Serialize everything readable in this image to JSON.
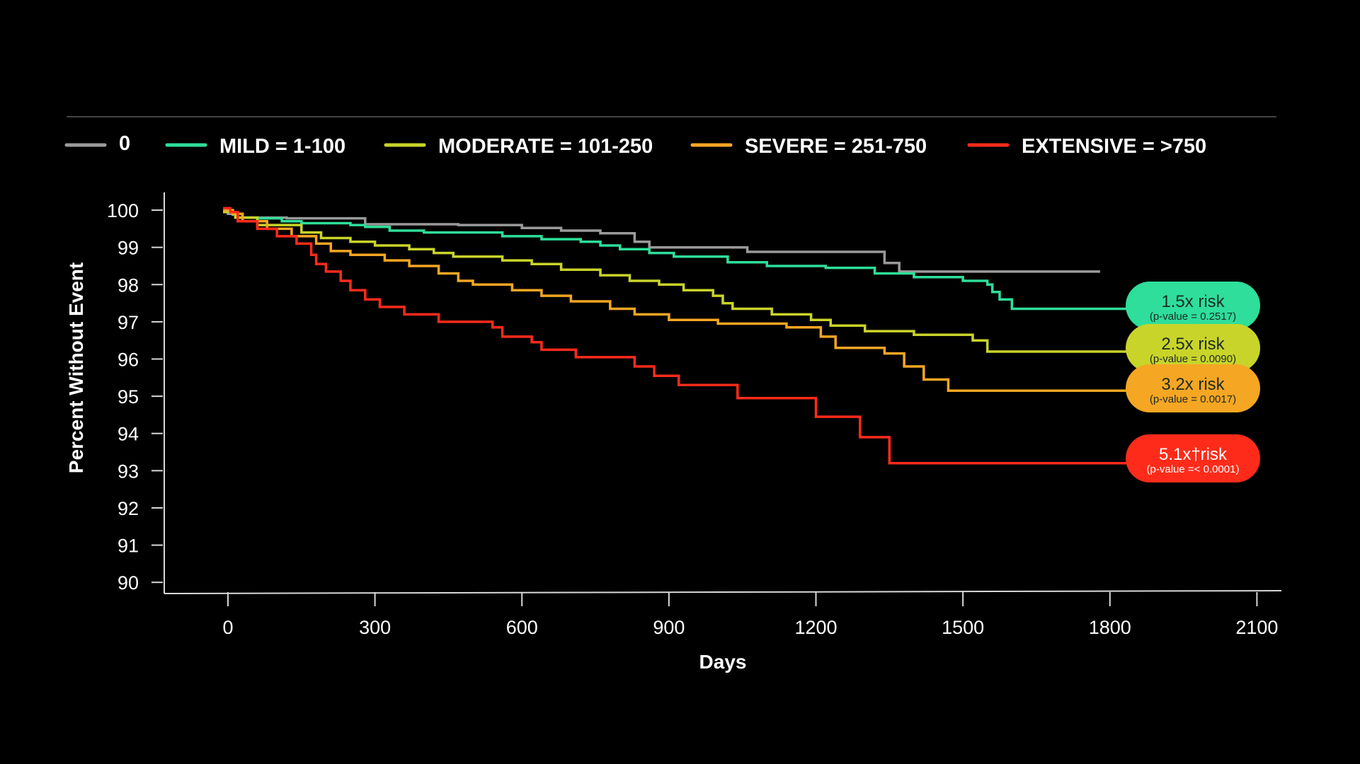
{
  "chart_data": {
    "type": "line",
    "step": true,
    "xlabel": "Days",
    "ylabel": "Percent Without Event",
    "xlim": [
      -130,
      2150
    ],
    "ylim": [
      89.7,
      100.4
    ],
    "xticks": [
      0,
      300,
      600,
      900,
      1200,
      1500,
      1800,
      2100
    ],
    "xtick_labels": [
      "0",
      "300",
      "600",
      "900",
      "1200",
      "1500",
      "1800",
      "2100"
    ],
    "yticks": [
      90,
      91,
      92,
      93,
      94,
      95,
      96,
      97,
      98,
      99,
      100
    ],
    "ytick_labels": [
      "90",
      "91",
      "92",
      "93",
      "94",
      "95",
      "96",
      "97",
      "98",
      "99",
      "100"
    ],
    "legend_position": "top",
    "series": [
      {
        "name": "0",
        "color": "#9a9a9a",
        "points": [
          [
            -10,
            99.95
          ],
          [
            0,
            99.9
          ],
          [
            20,
            99.8
          ],
          [
            120,
            99.78
          ],
          [
            280,
            99.7
          ],
          [
            280,
            99.62
          ],
          [
            470,
            99.6
          ],
          [
            600,
            99.52
          ],
          [
            680,
            99.45
          ],
          [
            760,
            99.38
          ],
          [
            830,
            99.25
          ],
          [
            830,
            99.15
          ],
          [
            860,
            99.0
          ],
          [
            1060,
            98.88
          ],
          [
            1340,
            98.78
          ],
          [
            1340,
            98.58
          ],
          [
            1370,
            98.48
          ],
          [
            1370,
            98.35
          ],
          [
            1780,
            98.35
          ]
        ]
      },
      {
        "name": "MILD = 1-100",
        "color": "#2ede9a",
        "points": [
          [
            -10,
            99.95
          ],
          [
            10,
            99.88
          ],
          [
            20,
            99.8
          ],
          [
            60,
            99.78
          ],
          [
            110,
            99.7
          ],
          [
            150,
            99.65
          ],
          [
            250,
            99.6
          ],
          [
            280,
            99.55
          ],
          [
            330,
            99.45
          ],
          [
            400,
            99.4
          ],
          [
            560,
            99.3
          ],
          [
            640,
            99.22
          ],
          [
            720,
            99.15
          ],
          [
            760,
            99.05
          ],
          [
            800,
            98.95
          ],
          [
            860,
            98.85
          ],
          [
            910,
            98.75
          ],
          [
            1020,
            98.6
          ],
          [
            1100,
            98.5
          ],
          [
            1220,
            98.45
          ],
          [
            1320,
            98.3
          ],
          [
            1400,
            98.2
          ],
          [
            1500,
            98.1
          ],
          [
            1550,
            98.0
          ],
          [
            1560,
            97.8
          ],
          [
            1575,
            97.6
          ],
          [
            1600,
            97.35
          ],
          [
            1890,
            97.35
          ]
        ]
      },
      {
        "name": "MODERATE = 101-250",
        "color": "#c9d42a",
        "points": [
          [
            -10,
            99.95
          ],
          [
            15,
            99.8
          ],
          [
            60,
            99.6
          ],
          [
            150,
            99.4
          ],
          [
            190,
            99.25
          ],
          [
            250,
            99.15
          ],
          [
            300,
            99.05
          ],
          [
            370,
            98.95
          ],
          [
            420,
            98.85
          ],
          [
            460,
            98.75
          ],
          [
            560,
            98.65
          ],
          [
            620,
            98.55
          ],
          [
            680,
            98.4
          ],
          [
            760,
            98.25
          ],
          [
            820,
            98.1
          ],
          [
            880,
            98.0
          ],
          [
            930,
            97.85
          ],
          [
            990,
            97.7
          ],
          [
            1010,
            97.5
          ],
          [
            1030,
            97.35
          ],
          [
            1110,
            97.2
          ],
          [
            1190,
            97.05
          ],
          [
            1230,
            96.9
          ],
          [
            1300,
            96.75
          ],
          [
            1400,
            96.65
          ],
          [
            1520,
            96.5
          ],
          [
            1550,
            96.2
          ],
          [
            1890,
            96.2
          ]
        ]
      },
      {
        "name": "SEVERE = 251-750",
        "color": "#f5a623",
        "points": [
          [
            -10,
            100.0
          ],
          [
            10,
            99.9
          ],
          [
            30,
            99.7
          ],
          [
            80,
            99.5
          ],
          [
            130,
            99.3
          ],
          [
            180,
            99.1
          ],
          [
            210,
            98.9
          ],
          [
            250,
            98.8
          ],
          [
            320,
            98.65
          ],
          [
            370,
            98.5
          ],
          [
            430,
            98.3
          ],
          [
            470,
            98.1
          ],
          [
            500,
            98.0
          ],
          [
            580,
            97.85
          ],
          [
            640,
            97.7
          ],
          [
            700,
            97.55
          ],
          [
            780,
            97.35
          ],
          [
            830,
            97.2
          ],
          [
            900,
            97.05
          ],
          [
            1000,
            96.95
          ],
          [
            1140,
            96.85
          ],
          [
            1210,
            96.6
          ],
          [
            1240,
            96.3
          ],
          [
            1340,
            96.15
          ],
          [
            1380,
            95.8
          ],
          [
            1420,
            95.45
          ],
          [
            1470,
            95.15
          ],
          [
            1890,
            95.15
          ]
        ]
      },
      {
        "name": "EXTENSIVE = >750",
        "color": "#ff2b1a",
        "points": [
          [
            -10,
            100.05
          ],
          [
            5,
            99.95
          ],
          [
            20,
            99.7
          ],
          [
            60,
            99.5
          ],
          [
            100,
            99.3
          ],
          [
            140,
            99.1
          ],
          [
            170,
            98.8
          ],
          [
            180,
            98.55
          ],
          [
            200,
            98.35
          ],
          [
            230,
            98.1
          ],
          [
            250,
            97.85
          ],
          [
            280,
            97.6
          ],
          [
            310,
            97.4
          ],
          [
            360,
            97.2
          ],
          [
            430,
            97.0
          ],
          [
            540,
            96.85
          ],
          [
            560,
            96.6
          ],
          [
            620,
            96.45
          ],
          [
            640,
            96.25
          ],
          [
            710,
            96.05
          ],
          [
            830,
            95.8
          ],
          [
            870,
            95.55
          ],
          [
            920,
            95.3
          ],
          [
            1040,
            94.95
          ],
          [
            1200,
            94.45
          ],
          [
            1290,
            93.9
          ],
          [
            1350,
            93.2
          ],
          [
            1860,
            93.2
          ]
        ]
      }
    ],
    "annotations": [
      {
        "series": "MILD = 1-100",
        "title": "1.5x risk",
        "subtitle": "(p-value = 0.2517)",
        "fill": "#2ede9a",
        "text_color": "#1c2a24"
      },
      {
        "series": "MODERATE = 101-250",
        "title": "2.5x risk",
        "subtitle": "(p-value = 0.0090)",
        "fill": "#c9d42a",
        "text_color": "#1c2a24"
      },
      {
        "series": "SEVERE = 251-750",
        "title": "3.2x risk",
        "subtitle": "(p-value = 0.0017)",
        "fill": "#f5a623",
        "text_color": "#1c2a24"
      },
      {
        "series": "EXTENSIVE = >750",
        "title": "5.1x†risk",
        "subtitle": "(p-value =< 0.0001)",
        "fill": "#ff2b1a",
        "text_color": "#ffffff"
      }
    ]
  }
}
